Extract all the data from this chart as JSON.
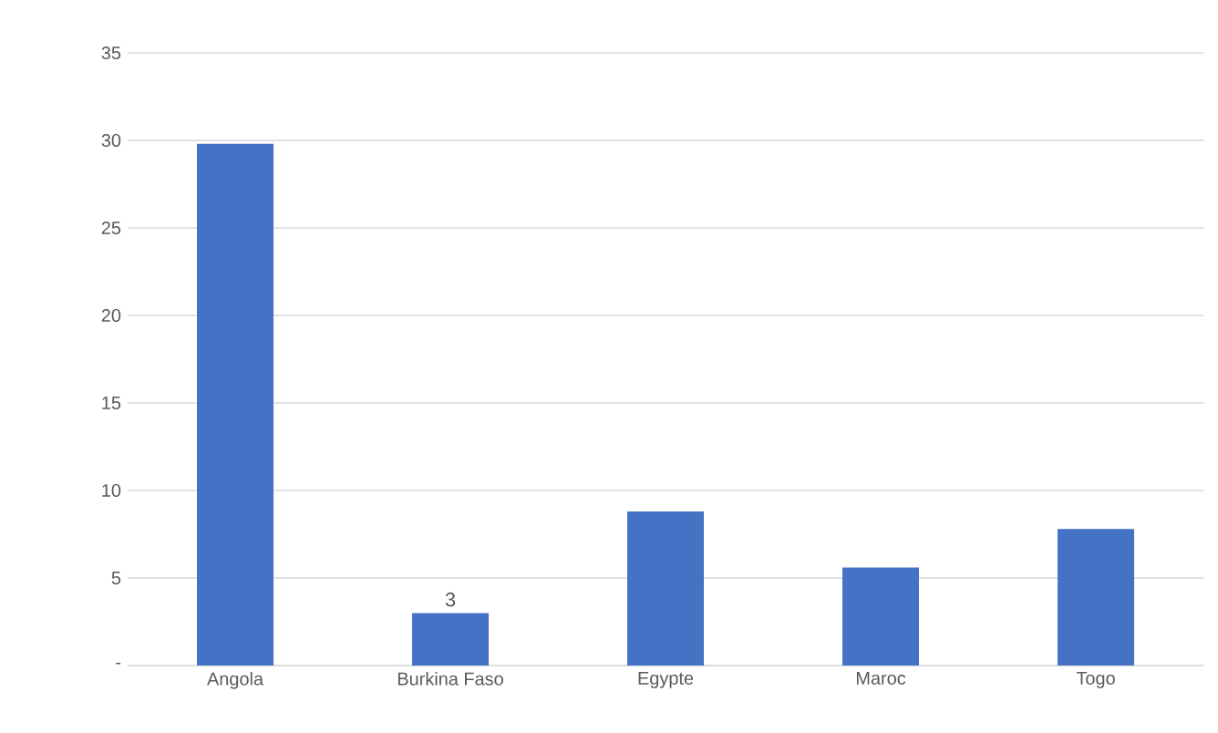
{
  "chart_data": {
    "type": "bar",
    "categories": [
      "Angola",
      "Burkina Faso",
      "Egypte",
      "Maroc",
      "Togo"
    ],
    "values": [
      29.8,
      3,
      8.8,
      5.6,
      7.8
    ],
    "value_labels": [
      null,
      "3",
      null,
      null,
      null
    ],
    "color": "#4472c4",
    "ylim": [
      0,
      35
    ],
    "yticks": [
      {
        "value": 0,
        "label": "-"
      },
      5,
      10,
      15,
      20,
      25,
      30,
      35
    ],
    "grid": "y"
  }
}
